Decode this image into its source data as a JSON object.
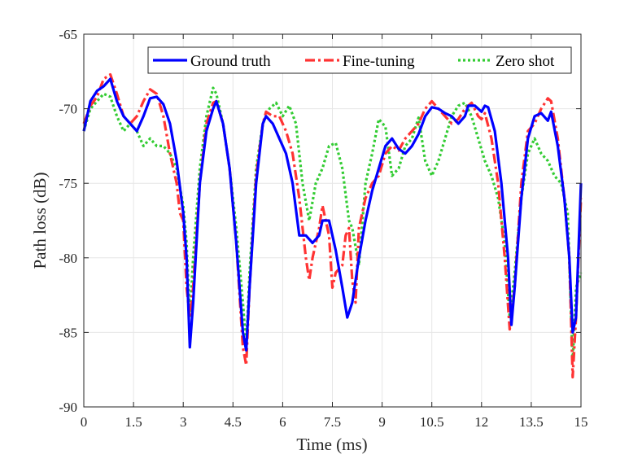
{
  "chart_data": {
    "type": "line",
    "title": "",
    "xlabel": "Time (ms)",
    "ylabel": "Path loss (dB)",
    "xlim": [
      0,
      15
    ],
    "ylim": [
      -90,
      -65
    ],
    "xticks": [
      0,
      1.5,
      3,
      4.5,
      6,
      7.5,
      9,
      10.5,
      12,
      13.5,
      15
    ],
    "yticks": [
      -90,
      -85,
      -80,
      -75,
      -70,
      -65
    ],
    "xtick_labels": [
      "0",
      "1.5",
      "3",
      "4.5",
      "6",
      "7.5",
      "9",
      "10.5",
      "12",
      "13.5",
      "15"
    ],
    "ytick_labels": [
      "-90",
      "-85",
      "-80",
      "-75",
      "-70",
      "-65"
    ],
    "grid": true,
    "legend_position": "top-right",
    "series": [
      {
        "name": "Ground truth",
        "color": "#0000ff",
        "style": "solid",
        "points": [
          [
            0,
            -71.5
          ],
          [
            0.2,
            -69.5
          ],
          [
            0.4,
            -68.8
          ],
          [
            0.6,
            -68.5
          ],
          [
            0.8,
            -68
          ],
          [
            1.0,
            -69.5
          ],
          [
            1.2,
            -70.5
          ],
          [
            1.4,
            -71
          ],
          [
            1.6,
            -71.5
          ],
          [
            1.8,
            -70.5
          ],
          [
            2.0,
            -69.3
          ],
          [
            2.2,
            -69.2
          ],
          [
            2.4,
            -69.7
          ],
          [
            2.6,
            -71
          ],
          [
            2.8,
            -73.5
          ],
          [
            3.0,
            -77
          ],
          [
            3.1,
            -80
          ],
          [
            3.2,
            -86
          ],
          [
            3.3,
            -83
          ],
          [
            3.5,
            -75
          ],
          [
            3.7,
            -71.5
          ],
          [
            3.9,
            -70
          ],
          [
            4.0,
            -69.5
          ],
          [
            4.2,
            -71
          ],
          [
            4.4,
            -74
          ],
          [
            4.6,
            -79
          ],
          [
            4.8,
            -85
          ],
          [
            4.9,
            -86.2
          ],
          [
            5.0,
            -82
          ],
          [
            5.2,
            -75
          ],
          [
            5.4,
            -71
          ],
          [
            5.5,
            -70.5
          ],
          [
            5.7,
            -71
          ],
          [
            5.9,
            -72
          ],
          [
            6.1,
            -73
          ],
          [
            6.3,
            -75
          ],
          [
            6.5,
            -78.5
          ],
          [
            6.7,
            -78.5
          ],
          [
            6.9,
            -79
          ],
          [
            7.1,
            -78.5
          ],
          [
            7.2,
            -77.5
          ],
          [
            7.4,
            -77.5
          ],
          [
            7.6,
            -79.5
          ],
          [
            7.8,
            -82
          ],
          [
            7.95,
            -84
          ],
          [
            8.1,
            -83
          ],
          [
            8.3,
            -80
          ],
          [
            8.5,
            -77.5
          ],
          [
            8.7,
            -75.5
          ],
          [
            8.9,
            -74
          ],
          [
            9.1,
            -72.5
          ],
          [
            9.3,
            -72
          ],
          [
            9.5,
            -72.7
          ],
          [
            9.7,
            -73
          ],
          [
            9.9,
            -72.5
          ],
          [
            10.1,
            -71.7
          ],
          [
            10.3,
            -70.5
          ],
          [
            10.5,
            -69.9
          ],
          [
            10.7,
            -70
          ],
          [
            10.9,
            -70.3
          ],
          [
            11.1,
            -70.5
          ],
          [
            11.3,
            -71
          ],
          [
            11.5,
            -70.5
          ],
          [
            11.6,
            -69.8
          ],
          [
            11.8,
            -69.8
          ],
          [
            12.0,
            -70.2
          ],
          [
            12.1,
            -69.8
          ],
          [
            12.2,
            -69.9
          ],
          [
            12.4,
            -71.5
          ],
          [
            12.6,
            -75
          ],
          [
            12.8,
            -80
          ],
          [
            12.9,
            -84.5
          ],
          [
            13.0,
            -82
          ],
          [
            13.2,
            -76
          ],
          [
            13.4,
            -72
          ],
          [
            13.6,
            -70.5
          ],
          [
            13.8,
            -70.3
          ],
          [
            14.0,
            -70.8
          ],
          [
            14.1,
            -70.2
          ],
          [
            14.3,
            -72.5
          ],
          [
            14.5,
            -76
          ],
          [
            14.65,
            -80
          ],
          [
            14.75,
            -85
          ],
          [
            14.85,
            -84
          ],
          [
            15,
            -75
          ]
        ]
      },
      {
        "name": "Fine-tuning",
        "color": "#ff3333",
        "style": "dashdot",
        "points": [
          [
            0,
            -71
          ],
          [
            0.2,
            -69.8
          ],
          [
            0.4,
            -69.2
          ],
          [
            0.6,
            -68
          ],
          [
            0.8,
            -67.7
          ],
          [
            1.0,
            -69
          ],
          [
            1.2,
            -70.5
          ],
          [
            1.4,
            -71
          ],
          [
            1.6,
            -70.5
          ],
          [
            1.8,
            -69.5
          ],
          [
            2.0,
            -68.7
          ],
          [
            2.2,
            -69
          ],
          [
            2.4,
            -70.5
          ],
          [
            2.6,
            -73
          ],
          [
            2.8,
            -75
          ],
          [
            2.9,
            -77
          ],
          [
            3.0,
            -77.5
          ],
          [
            3.1,
            -82
          ],
          [
            3.2,
            -84
          ],
          [
            3.3,
            -82
          ],
          [
            3.5,
            -75
          ],
          [
            3.7,
            -71
          ],
          [
            3.9,
            -69.6
          ],
          [
            4.0,
            -69.5
          ],
          [
            4.2,
            -71
          ],
          [
            4.4,
            -74
          ],
          [
            4.6,
            -79
          ],
          [
            4.8,
            -86
          ],
          [
            4.9,
            -87.2
          ],
          [
            5.0,
            -82
          ],
          [
            5.2,
            -74.5
          ],
          [
            5.4,
            -71
          ],
          [
            5.5,
            -70.2
          ],
          [
            5.7,
            -70.5
          ],
          [
            5.9,
            -70.5
          ],
          [
            6.1,
            -71.5
          ],
          [
            6.3,
            -73
          ],
          [
            6.5,
            -76
          ],
          [
            6.7,
            -80
          ],
          [
            6.8,
            -81.5
          ],
          [
            6.9,
            -80
          ],
          [
            7.1,
            -78
          ],
          [
            7.2,
            -76.5
          ],
          [
            7.4,
            -78.5
          ],
          [
            7.5,
            -82
          ],
          [
            7.6,
            -81
          ],
          [
            7.8,
            -80.5
          ],
          [
            7.9,
            -78.5
          ],
          [
            8.0,
            -78
          ],
          [
            8.1,
            -81.5
          ],
          [
            8.2,
            -83
          ],
          [
            8.3,
            -78
          ],
          [
            8.5,
            -76
          ],
          [
            8.7,
            -75
          ],
          [
            8.9,
            -74.5
          ],
          [
            9.1,
            -73
          ],
          [
            9.3,
            -72.5
          ],
          [
            9.5,
            -72.8
          ],
          [
            9.7,
            -72
          ],
          [
            9.9,
            -71.5
          ],
          [
            10.1,
            -71
          ],
          [
            10.3,
            -70
          ],
          [
            10.5,
            -69.5
          ],
          [
            10.7,
            -70
          ],
          [
            10.9,
            -70.5
          ],
          [
            11.1,
            -71
          ],
          [
            11.3,
            -70.7
          ],
          [
            11.5,
            -70
          ],
          [
            11.7,
            -69.6
          ],
          [
            11.9,
            -70.5
          ],
          [
            12.0,
            -70.7
          ],
          [
            12.1,
            -70.3
          ],
          [
            12.3,
            -72
          ],
          [
            12.5,
            -75
          ],
          [
            12.7,
            -80
          ],
          [
            12.85,
            -84.8
          ],
          [
            13.0,
            -82
          ],
          [
            13.2,
            -75
          ],
          [
            13.4,
            -71.5
          ],
          [
            13.6,
            -71
          ],
          [
            13.8,
            -70
          ],
          [
            14.0,
            -69.3
          ],
          [
            14.1,
            -69.5
          ],
          [
            14.3,
            -72
          ],
          [
            14.5,
            -76
          ],
          [
            14.65,
            -80
          ],
          [
            14.75,
            -88
          ],
          [
            14.85,
            -84
          ],
          [
            15,
            -76
          ]
        ]
      },
      {
        "name": "Zero shot",
        "color": "#33cc33",
        "style": "dotted",
        "points": [
          [
            0,
            -71.5
          ],
          [
            0.2,
            -70
          ],
          [
            0.4,
            -69.5
          ],
          [
            0.6,
            -69
          ],
          [
            0.8,
            -69.2
          ],
          [
            1.0,
            -70.5
          ],
          [
            1.2,
            -71.5
          ],
          [
            1.4,
            -71
          ],
          [
            1.6,
            -71.5
          ],
          [
            1.8,
            -72.5
          ],
          [
            2.0,
            -72
          ],
          [
            2.2,
            -72.5
          ],
          [
            2.4,
            -72.5
          ],
          [
            2.6,
            -73
          ],
          [
            2.8,
            -74
          ],
          [
            3.0,
            -76.5
          ],
          [
            3.1,
            -79
          ],
          [
            3.2,
            -84
          ],
          [
            3.3,
            -80
          ],
          [
            3.5,
            -74
          ],
          [
            3.7,
            -70.5
          ],
          [
            3.9,
            -68.6
          ],
          [
            4.0,
            -69
          ],
          [
            4.2,
            -71
          ],
          [
            4.4,
            -74
          ],
          [
            4.6,
            -78
          ],
          [
            4.8,
            -83
          ],
          [
            4.9,
            -86
          ],
          [
            5.0,
            -81
          ],
          [
            5.2,
            -74
          ],
          [
            5.4,
            -71
          ],
          [
            5.6,
            -70
          ],
          [
            5.8,
            -69.6
          ],
          [
            6.0,
            -70.5
          ],
          [
            6.2,
            -69.8
          ],
          [
            6.4,
            -71
          ],
          [
            6.6,
            -75
          ],
          [
            6.8,
            -77.5
          ],
          [
            7.0,
            -75
          ],
          [
            7.2,
            -74
          ],
          [
            7.4,
            -72.5
          ],
          [
            7.6,
            -72.3
          ],
          [
            7.8,
            -74
          ],
          [
            8.0,
            -77.5
          ],
          [
            8.1,
            -78
          ],
          [
            8.3,
            -80.5
          ],
          [
            8.5,
            -75
          ],
          [
            8.7,
            -73
          ],
          [
            8.9,
            -70.7
          ],
          [
            9.1,
            -71.2
          ],
          [
            9.3,
            -74.5
          ],
          [
            9.5,
            -74
          ],
          [
            9.7,
            -72.5
          ],
          [
            9.9,
            -72
          ],
          [
            10.1,
            -70.6
          ],
          [
            10.3,
            -73.5
          ],
          [
            10.5,
            -74.5
          ],
          [
            10.7,
            -73.5
          ],
          [
            10.9,
            -72
          ],
          [
            11.1,
            -70.5
          ],
          [
            11.3,
            -69.8
          ],
          [
            11.5,
            -69.6
          ],
          [
            11.7,
            -70.5
          ],
          [
            11.9,
            -72
          ],
          [
            12.1,
            -73.5
          ],
          [
            12.3,
            -74.5
          ],
          [
            12.5,
            -76
          ],
          [
            12.7,
            -79
          ],
          [
            12.85,
            -84
          ],
          [
            13.0,
            -81
          ],
          [
            13.2,
            -76
          ],
          [
            13.4,
            -73
          ],
          [
            13.6,
            -72
          ],
          [
            13.8,
            -73
          ],
          [
            14.0,
            -73.5
          ],
          [
            14.2,
            -74.5
          ],
          [
            14.4,
            -75
          ],
          [
            14.6,
            -77
          ],
          [
            14.75,
            -87
          ],
          [
            14.85,
            -82
          ],
          [
            15,
            -81
          ]
        ]
      }
    ]
  }
}
